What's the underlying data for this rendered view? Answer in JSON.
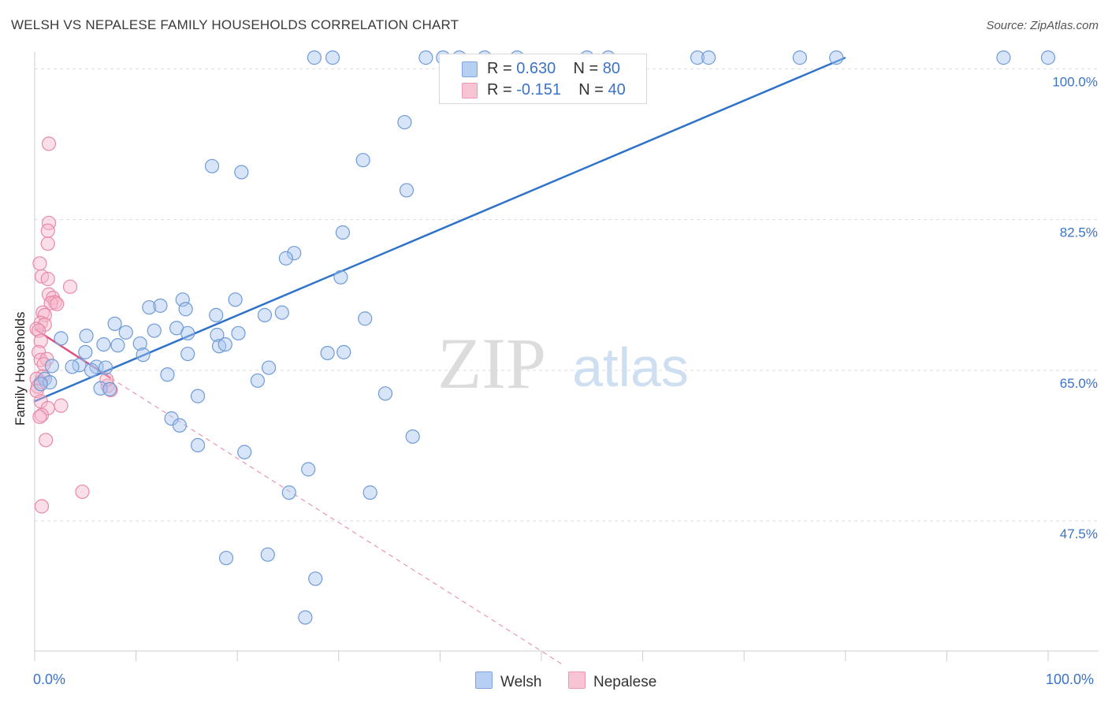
{
  "title": "WELSH VS NEPALESE FAMILY HOUSEHOLDS CORRELATION CHART",
  "source": "Source: ZipAtlas.com",
  "watermark": {
    "zip": "ZIP",
    "atlas": "atlas"
  },
  "colors": {
    "welsh_fill": "#a9c6f0",
    "welsh_stroke": "#6f9bd8",
    "welsh_line": "#2f72c9",
    "nepalese_fill": "#f7b9cc",
    "nepalese_stroke": "#e88aa8",
    "nepalese_line": "#e0507e",
    "axis_label": "#3b73c7",
    "grid": "#dddddd"
  },
  "legend": {
    "welsh": {
      "r_label": "R = ",
      "r_value": "0.630",
      "n_label": "N = ",
      "n_value": "80"
    },
    "nepalese": {
      "r_label": "R = ",
      "r_value": "-0.151",
      "n_label": "N = ",
      "n_value": "40"
    }
  },
  "bottom_legend": {
    "welsh": "Welsh",
    "nepalese": "Nepalese"
  },
  "chart_data": {
    "type": "scatter",
    "xlabel": "",
    "ylabel": "Family Households",
    "xlim": [
      0,
      100
    ],
    "ylim": [
      32.5,
      102.5
    ],
    "x_tick_labels": [
      "0.0%",
      "100.0%"
    ],
    "y_ticks": [
      47.5,
      65.0,
      82.5,
      100.0
    ],
    "y_tick_labels": [
      "47.5%",
      "65.0%",
      "82.5%",
      "100.0%"
    ],
    "series": [
      {
        "name": "Welsh",
        "trend": {
          "x": [
            0,
            80
          ],
          "y": [
            61.4,
            101.3
          ]
        },
        "points": [
          [
            27.6,
            101.3
          ],
          [
            29.4,
            101.3
          ],
          [
            38.6,
            101.3
          ],
          [
            40.3,
            101.3
          ],
          [
            41.9,
            101.3
          ],
          [
            44.4,
            101.3
          ],
          [
            47.6,
            101.3
          ],
          [
            54.5,
            101.3
          ],
          [
            56.6,
            101.3
          ],
          [
            65.4,
            101.3
          ],
          [
            66.5,
            101.3
          ],
          [
            75.5,
            101.3
          ],
          [
            79.1,
            101.3
          ],
          [
            95.6,
            101.3
          ],
          [
            100.0,
            101.3
          ],
          [
            36.5,
            93.8
          ],
          [
            32.4,
            89.4
          ],
          [
            17.5,
            88.7
          ],
          [
            20.4,
            88.0
          ],
          [
            36.7,
            85.9
          ],
          [
            30.4,
            81.0
          ],
          [
            25.6,
            78.6
          ],
          [
            24.8,
            78.0
          ],
          [
            30.2,
            75.8
          ],
          [
            14.6,
            73.2
          ],
          [
            19.8,
            73.2
          ],
          [
            11.3,
            72.3
          ],
          [
            12.4,
            72.5
          ],
          [
            14.9,
            72.1
          ],
          [
            17.9,
            71.4
          ],
          [
            24.4,
            71.7
          ],
          [
            22.7,
            71.4
          ],
          [
            32.6,
            71.0
          ],
          [
            7.9,
            70.4
          ],
          [
            11.8,
            69.6
          ],
          [
            9.0,
            69.4
          ],
          [
            14.0,
            69.9
          ],
          [
            15.1,
            69.3
          ],
          [
            20.1,
            69.3
          ],
          [
            18.0,
            69.1
          ],
          [
            5.1,
            69.0
          ],
          [
            2.6,
            68.7
          ],
          [
            6.8,
            68.0
          ],
          [
            8.2,
            67.9
          ],
          [
            10.4,
            68.1
          ],
          [
            18.2,
            67.8
          ],
          [
            18.8,
            68.0
          ],
          [
            5.0,
            67.1
          ],
          [
            10.7,
            66.8
          ],
          [
            15.1,
            66.9
          ],
          [
            28.9,
            67.0
          ],
          [
            30.5,
            67.1
          ],
          [
            4.4,
            65.6
          ],
          [
            1.7,
            65.5
          ],
          [
            3.7,
            65.4
          ],
          [
            6.1,
            65.4
          ],
          [
            5.6,
            65.0
          ],
          [
            7.0,
            65.3
          ],
          [
            23.1,
            65.3
          ],
          [
            13.1,
            64.5
          ],
          [
            1.0,
            64.0
          ],
          [
            22.0,
            63.8
          ],
          [
            1.5,
            63.6
          ],
          [
            0.6,
            63.4
          ],
          [
            6.5,
            62.9
          ],
          [
            7.4,
            62.8
          ],
          [
            16.1,
            62.0
          ],
          [
            34.6,
            62.3
          ],
          [
            13.5,
            59.4
          ],
          [
            14.3,
            58.6
          ],
          [
            37.3,
            57.3
          ],
          [
            16.1,
            56.3
          ],
          [
            20.7,
            55.5
          ],
          [
            27.0,
            53.5
          ],
          [
            25.1,
            50.8
          ],
          [
            33.1,
            50.8
          ],
          [
            18.9,
            43.2
          ],
          [
            23.0,
            43.6
          ],
          [
            27.7,
            40.8
          ],
          [
            26.7,
            36.3
          ]
        ]
      },
      {
        "name": "Nepalese",
        "trend": {
          "x": [
            0,
            7.5
          ],
          "y": [
            69.8,
            64.1
          ]
        },
        "trend_extended": {
          "x": [
            7.5,
            52.0
          ],
          "y": [
            64.1,
            30.9
          ]
        },
        "points": [
          [
            1.4,
            91.3
          ],
          [
            1.4,
            82.1
          ],
          [
            1.3,
            81.2
          ],
          [
            1.3,
            79.7
          ],
          [
            0.5,
            77.4
          ],
          [
            0.7,
            75.9
          ],
          [
            1.3,
            75.6
          ],
          [
            3.5,
            74.7
          ],
          [
            1.4,
            73.8
          ],
          [
            1.8,
            73.4
          ],
          [
            2.0,
            72.9
          ],
          [
            1.6,
            72.8
          ],
          [
            2.2,
            72.7
          ],
          [
            0.8,
            71.7
          ],
          [
            1.0,
            71.4
          ],
          [
            0.6,
            70.5
          ],
          [
            1.0,
            70.3
          ],
          [
            0.2,
            69.8
          ],
          [
            0.4,
            69.6
          ],
          [
            0.6,
            68.4
          ],
          [
            0.4,
            67.1
          ],
          [
            0.6,
            66.2
          ],
          [
            1.2,
            66.3
          ],
          [
            0.9,
            65.7
          ],
          [
            0.8,
            64.3
          ],
          [
            0.2,
            64.0
          ],
          [
            0.6,
            63.6
          ],
          [
            0.3,
            63.1
          ],
          [
            7.2,
            63.2
          ],
          [
            7.5,
            62.7
          ],
          [
            0.2,
            62.6
          ],
          [
            0.6,
            61.4
          ],
          [
            2.6,
            60.9
          ],
          [
            1.3,
            60.6
          ],
          [
            0.7,
            59.8
          ],
          [
            0.5,
            59.6
          ],
          [
            1.1,
            56.9
          ],
          [
            4.7,
            50.9
          ],
          [
            0.7,
            49.2
          ],
          [
            7.1,
            63.9
          ]
        ]
      }
    ]
  }
}
